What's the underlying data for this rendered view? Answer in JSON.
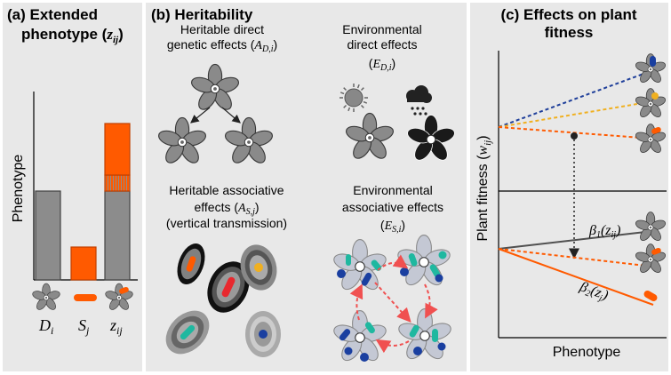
{
  "panels": {
    "a": {
      "title_1": "(a) Extended",
      "title_2": "phenotype (",
      "title_sym": "z",
      "title_sub": "ij",
      "title_end": ")",
      "ylabel": "Phenotype",
      "labels": [
        {
          "sym": "D",
          "sub": "i"
        },
        {
          "sym": "S",
          "sub": "j"
        },
        {
          "sym": "z",
          "sub": "ij"
        }
      ]
    },
    "b": {
      "title": "(b) Heritability",
      "q1_line1": "Heritable direct",
      "q1_line2": "genetic effects (",
      "q1_sym": "A",
      "q1_sub": "D,i",
      "q1_end": ")",
      "q2_line1": "Environmental",
      "q2_line2": "direct effects",
      "q2_open": "(",
      "q2_sym": "E",
      "q2_sub": "D,i",
      "q2_end": ")",
      "q3_line1": "Heritable associative",
      "q3_line2": "effects (",
      "q3_sym": "A",
      "q3_sub": "S,j",
      "q3_end": ")",
      "q3_line3": "(vertical transmission)",
      "q4_line1": "Environmental",
      "q4_line2": "associative effects",
      "q4_open": "(",
      "q4_sym": "E",
      "q4_sub": "S,i",
      "q4_end": ")"
    },
    "c": {
      "title_1": "(c) Effects on plant",
      "title_2": "fitness",
      "ylabel_text": "Plant fitness (",
      "ylabel_sym": "w",
      "ylabel_sub": "ij",
      "ylabel_end": ")",
      "xlabel": "Phenotype",
      "beta1_sym": "β",
      "beta1_sub": "1",
      "beta1_arg": "(z",
      "beta1_argsub": "ij",
      "beta1_end": ")",
      "beta2_sym": "β",
      "beta2_sub": "2",
      "beta2_arg": "(z",
      "beta2_argsub": "j",
      "beta2_end": ")"
    }
  },
  "chart_data": {
    "type": "bar",
    "categories": [
      "Di",
      "Sj",
      "zij"
    ],
    "series": [
      {
        "values": [
          1.0,
          0.0,
          1.0
        ]
      },
      {
        "values": [
          0.0,
          0.37,
          0.18
        ]
      },
      {
        "values": [
          0.0,
          0.0,
          0.58
        ]
      }
    ],
    "stacked": true
  },
  "colors": {
    "panel_bg": "#e8e8e8",
    "gray_bar": "#8c8c8c",
    "orange": "#ff5a00",
    "blue_line": "#1f3f9a",
    "yellow_line": "#f0b020",
    "dark_line": "#505050",
    "petal": "#8a8a8a"
  },
  "icons": [
    "plant-flower-icon",
    "sun-icon",
    "rain-cloud-icon",
    "microbe-cell-icon"
  ]
}
